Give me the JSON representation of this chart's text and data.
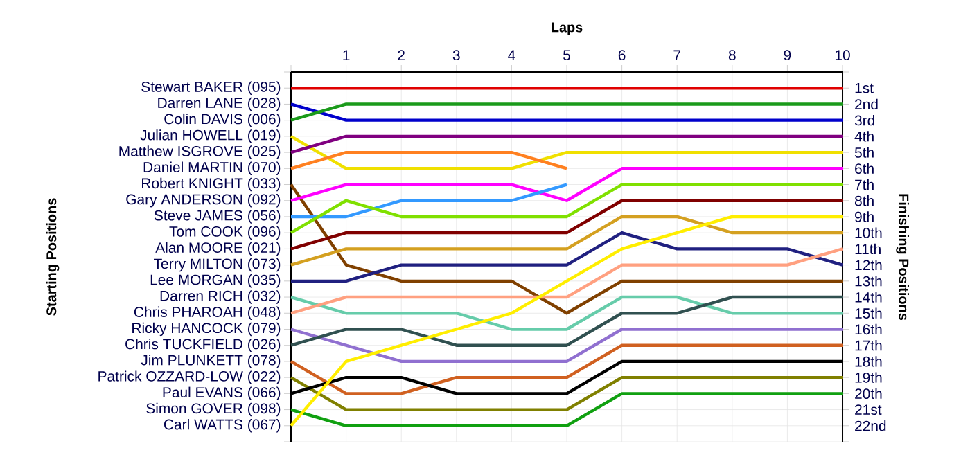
{
  "chart_data": {
    "type": "line",
    "xlabel": "Laps",
    "y2label": "Finishing Positions",
    "x": [
      0,
      1,
      2,
      3,
      4,
      5,
      6,
      7,
      8,
      9,
      10
    ],
    "xlim": [
      0,
      10
    ],
    "xticks": [
      {
        "value": 0,
        "label": null
      },
      1,
      2,
      3,
      4,
      5,
      6,
      7,
      8,
      9,
      10
    ],
    "annotations": [
      "Stewart BAKER (095)",
      "Darren LANE (028)",
      "Colin DAVIS (006)",
      "Julian HOWELL (019)",
      "Matthew ISGROVE (025)",
      "Daniel MARTIN (070)",
      "Robert KNIGHT (033)",
      "Gary ANDERSON (092)",
      "Steve JAMES (056)",
      "Tom COOK (096)",
      "Alan MOORE (021)",
      "Terry MILTON (073)",
      "Lee MORGAN (035)",
      "Darren RICH (032)",
      "Chris PHAROAH (048)",
      "Ricky HANCOCK (079)",
      "Chris TUCKFIELD (026)",
      "Jim PLUNKETT (078)",
      "Patrick OZZARD-LOW (022)",
      "Paul EVANS (066)",
      "Simon GOVER (098)",
      "Carl WATTS (067)",
      "Starting Positions"
    ],
    "y2lim": [
      23,
      0
    ],
    "y2ticks": [
      {
        "value": 0,
        "label": null
      },
      {
        "value": 1,
        "label": "1st"
      },
      {
        "value": 2,
        "label": "2nd"
      },
      {
        "value": 3,
        "label": "3rd"
      },
      {
        "value": 4,
        "label": "4th"
      },
      {
        "value": 5,
        "label": "5th"
      },
      {
        "value": 6,
        "label": "6th"
      },
      {
        "value": 7,
        "label": "7th"
      },
      {
        "value": 8,
        "label": "8th"
      },
      {
        "value": 9,
        "label": "9th"
      },
      {
        "value": 10,
        "label": "10th"
      },
      {
        "value": 11,
        "label": "11th"
      },
      {
        "value": 12,
        "label": "12th"
      },
      {
        "value": 13,
        "label": "13th"
      },
      {
        "value": 14,
        "label": "14th"
      },
      {
        "value": 15,
        "label": "15th"
      },
      {
        "value": 16,
        "label": "16th"
      },
      {
        "value": 17,
        "label": "17th"
      },
      {
        "value": 18,
        "label": "18th"
      },
      {
        "value": 19,
        "label": "19th"
      },
      {
        "value": 20,
        "label": "20th"
      },
      {
        "value": 21,
        "label": "21st"
      },
      {
        "value": 22,
        "label": "22nd"
      },
      {
        "value": 23,
        "label": null
      }
    ],
    "grid": true,
    "marker": "none",
    "line_style": "solid",
    "series": [
      {
        "axis": "y2",
        "color": "#e00000",
        "values": [
          1,
          1,
          1,
          1,
          1,
          1,
          1,
          1,
          1,
          1,
          1
        ]
      },
      {
        "axis": "y2",
        "color": "#0000cc",
        "values": [
          2,
          3,
          3,
          3,
          3,
          3,
          3,
          3,
          3,
          3,
          3
        ]
      },
      {
        "axis": "y2",
        "color": "#1a9a1a",
        "values": [
          3,
          2,
          2,
          2,
          2,
          2,
          2,
          2,
          2,
          2,
          2
        ]
      },
      {
        "axis": "y2",
        "color": "#f0e000",
        "values": [
          4,
          6,
          6,
          6,
          6,
          5,
          5,
          5,
          5,
          5,
          5
        ]
      },
      {
        "axis": "y2",
        "color": "#800080",
        "values": [
          5,
          4,
          4,
          4,
          4,
          4,
          4,
          4,
          4,
          4,
          4
        ]
      },
      {
        "axis": "y2",
        "color": "#ff8020",
        "values": [
          6,
          5,
          5,
          5,
          5,
          6,
          null,
          null,
          null,
          null,
          null
        ]
      },
      {
        "axis": "y2",
        "color": "#804000",
        "values": [
          7,
          12,
          13,
          13,
          13,
          15,
          13,
          13,
          13,
          13,
          13
        ]
      },
      {
        "axis": "y2",
        "color": "#ff00ff",
        "values": [
          8,
          7,
          7,
          7,
          7,
          8,
          6,
          6,
          6,
          6,
          6
        ]
      },
      {
        "axis": "y2",
        "color": "#3399ff",
        "values": [
          9,
          9,
          8,
          8,
          8,
          7,
          null,
          null,
          null,
          null,
          null
        ]
      },
      {
        "axis": "y2",
        "color": "#80e000",
        "values": [
          10,
          8,
          9,
          9,
          9,
          9,
          7,
          7,
          7,
          7,
          7
        ]
      },
      {
        "axis": "y2",
        "color": "#800000",
        "values": [
          11,
          10,
          10,
          10,
          10,
          10,
          8,
          8,
          8,
          8,
          8
        ]
      },
      {
        "axis": "y2",
        "color": "#d4a020",
        "values": [
          12,
          11,
          11,
          11,
          11,
          11,
          9,
          9,
          10,
          10,
          10
        ]
      },
      {
        "axis": "y2",
        "color": "#202080",
        "values": [
          13,
          13,
          12,
          12,
          12,
          12,
          10,
          11,
          11,
          11,
          12
        ]
      },
      {
        "axis": "y2",
        "color": "#66ccaa",
        "values": [
          14,
          15,
          15,
          15,
          16,
          16,
          14,
          14,
          15,
          15,
          15
        ]
      },
      {
        "axis": "y2",
        "color": "#ffa080",
        "values": [
          15,
          14,
          14,
          14,
          14,
          14,
          12,
          12,
          12,
          12,
          11
        ]
      },
      {
        "axis": "y2",
        "color": "#9070d0",
        "values": [
          16,
          17,
          18,
          18,
          18,
          18,
          16,
          16,
          16,
          16,
          16
        ]
      },
      {
        "axis": "y2",
        "color": "#305050",
        "values": [
          17,
          16,
          16,
          17,
          17,
          17,
          15,
          15,
          14,
          14,
          14
        ]
      },
      {
        "axis": "y2",
        "color": "#d06020",
        "values": [
          18,
          20,
          20,
          19,
          19,
          19,
          17,
          17,
          17,
          17,
          17
        ]
      },
      {
        "axis": "y2",
        "color": "#808000",
        "values": [
          19,
          21,
          21,
          21,
          21,
          21,
          19,
          19,
          19,
          19,
          19
        ]
      },
      {
        "axis": "y2",
        "color": "#000000",
        "values": [
          20,
          19,
          19,
          20,
          20,
          20,
          18,
          18,
          18,
          18,
          18
        ]
      },
      {
        "axis": "y2",
        "color": "#10a010",
        "values": [
          21,
          22,
          22,
          22,
          22,
          22,
          20,
          20,
          20,
          20,
          20
        ]
      },
      {
        "axis": "y2",
        "color": "#ffee00",
        "values": [
          22,
          18,
          17,
          16,
          15,
          13,
          11,
          10,
          9,
          9,
          9
        ]
      }
    ]
  }
}
